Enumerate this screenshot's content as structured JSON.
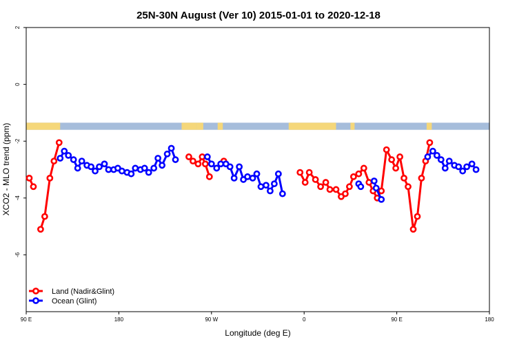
{
  "chart_data": {
    "type": "line",
    "title": "25N-30N August (Ver 10)   2015-01-01 to 2020-12-18",
    "xlabel": "Longitude (deg E)",
    "ylabel": "XCO2 - MLO trend (ppm)",
    "xlim": [
      90,
      540
    ],
    "ylim": [
      -8.0,
      2.0
    ],
    "x_ticks": [
      {
        "value": 90,
        "label": "90 E"
      },
      {
        "value": 180,
        "label": "180"
      },
      {
        "value": 270,
        "label": "90 W"
      },
      {
        "value": 360,
        "label": "0"
      },
      {
        "value": 450,
        "label": "90 E"
      },
      {
        "value": 540,
        "label": "180"
      }
    ],
    "y_ticks": [
      {
        "value": 2,
        "label": "2"
      },
      {
        "value": 0,
        "label": "0"
      },
      {
        "value": -2,
        "label": "-2"
      },
      {
        "value": -4,
        "label": "-4"
      },
      {
        "value": -6,
        "label": "-6"
      }
    ],
    "legend_position": "bottom-left",
    "grid": false,
    "land_ocean_strip": {
      "y_range": [
        -1.35,
        -1.6
      ],
      "land_color": "#f5d77a",
      "ocean_color": "#a6bddb",
      "land_segments": [
        [
          90,
          123
        ],
        [
          241,
          256
        ],
        [
          256,
          262
        ],
        [
          276,
          281
        ],
        [
          345,
          391
        ],
        [
          405,
          409
        ],
        [
          479,
          484
        ]
      ]
    },
    "series": [
      {
        "name": "Land (Nadir&Glint)",
        "color": "#ff0000",
        "points": [
          [
            93,
            -3.3
          ],
          [
            97,
            -3.6
          ],
          [
            104,
            -5.1
          ],
          [
            108,
            -4.65
          ],
          [
            113,
            -3.3
          ],
          [
            117,
            -2.7
          ],
          [
            122,
            -2.05
          ],
          [
            248,
            -2.55
          ],
          [
            252,
            -2.7
          ],
          [
            257,
            -2.8
          ],
          [
            261,
            -2.55
          ],
          [
            264,
            -2.8
          ],
          [
            268,
            -3.25
          ],
          [
            282,
            -2.7
          ],
          [
            356,
            -3.1
          ],
          [
            361,
            -3.45
          ],
          [
            365,
            -3.1
          ],
          [
            371,
            -3.35
          ],
          [
            376,
            -3.6
          ],
          [
            381,
            -3.45
          ],
          [
            385,
            -3.7
          ],
          [
            391,
            -3.7
          ],
          [
            396,
            -3.95
          ],
          [
            400,
            -3.85
          ],
          [
            404,
            -3.6
          ],
          [
            408,
            -3.25
          ],
          [
            413,
            -3.15
          ],
          [
            418,
            -2.95
          ],
          [
            423,
            -3.45
          ],
          [
            427,
            -3.75
          ],
          [
            431,
            -4.0
          ],
          [
            435,
            -3.75
          ],
          [
            440,
            -2.3
          ],
          [
            445,
            -2.65
          ],
          [
            449,
            -2.95
          ],
          [
            453,
            -2.55
          ],
          [
            457,
            -3.3
          ],
          [
            461,
            -3.6
          ],
          [
            466,
            -5.1
          ],
          [
            470,
            -4.65
          ],
          [
            474,
            -3.3
          ],
          [
            478,
            -2.7
          ],
          [
            482,
            -2.05
          ]
        ]
      },
      {
        "name": "Ocean (Glint)",
        "color": "#0000ff",
        "points": [
          [
            123,
            -2.6
          ],
          [
            127,
            -2.35
          ],
          [
            131,
            -2.5
          ],
          [
            136,
            -2.65
          ],
          [
            140,
            -2.95
          ],
          [
            144,
            -2.7
          ],
          [
            149,
            -2.85
          ],
          [
            153,
            -2.9
          ],
          [
            157,
            -3.05
          ],
          [
            161,
            -2.9
          ],
          [
            166,
            -2.8
          ],
          [
            170,
            -3.0
          ],
          [
            175,
            -3.0
          ],
          [
            179,
            -2.95
          ],
          [
            183,
            -3.05
          ],
          [
            188,
            -3.1
          ],
          [
            192,
            -3.15
          ],
          [
            196,
            -2.95
          ],
          [
            201,
            -3.0
          ],
          [
            205,
            -2.95
          ],
          [
            209,
            -3.1
          ],
          [
            214,
            -2.95
          ],
          [
            218,
            -2.6
          ],
          [
            222,
            -2.85
          ],
          [
            227,
            -2.45
          ],
          [
            231,
            -2.25
          ],
          [
            235,
            -2.65
          ],
          [
            266,
            -2.55
          ],
          [
            270,
            -2.8
          ],
          [
            275,
            -2.95
          ],
          [
            279,
            -2.8
          ],
          [
            284,
            -2.8
          ],
          [
            288,
            -2.9
          ],
          [
            292,
            -3.3
          ],
          [
            297,
            -2.9
          ],
          [
            301,
            -3.35
          ],
          [
            305,
            -3.25
          ],
          [
            310,
            -3.3
          ],
          [
            314,
            -3.15
          ],
          [
            318,
            -3.6
          ],
          [
            323,
            -3.55
          ],
          [
            327,
            -3.75
          ],
          [
            331,
            -3.5
          ],
          [
            335,
            -3.15
          ],
          [
            339,
            -3.85
          ],
          [
            413,
            -3.5
          ],
          [
            415,
            -3.6
          ],
          [
            428,
            -3.4
          ],
          [
            430,
            -3.65
          ],
          [
            435,
            -4.05
          ],
          [
            480,
            -2.55
          ],
          [
            485,
            -2.35
          ],
          [
            489,
            -2.5
          ],
          [
            493,
            -2.65
          ],
          [
            497,
            -2.95
          ],
          [
            501,
            -2.7
          ],
          [
            506,
            -2.85
          ],
          [
            510,
            -2.9
          ],
          [
            514,
            -3.05
          ],
          [
            518,
            -2.9
          ],
          [
            523,
            -2.8
          ],
          [
            527,
            -3.0
          ]
        ]
      }
    ]
  }
}
